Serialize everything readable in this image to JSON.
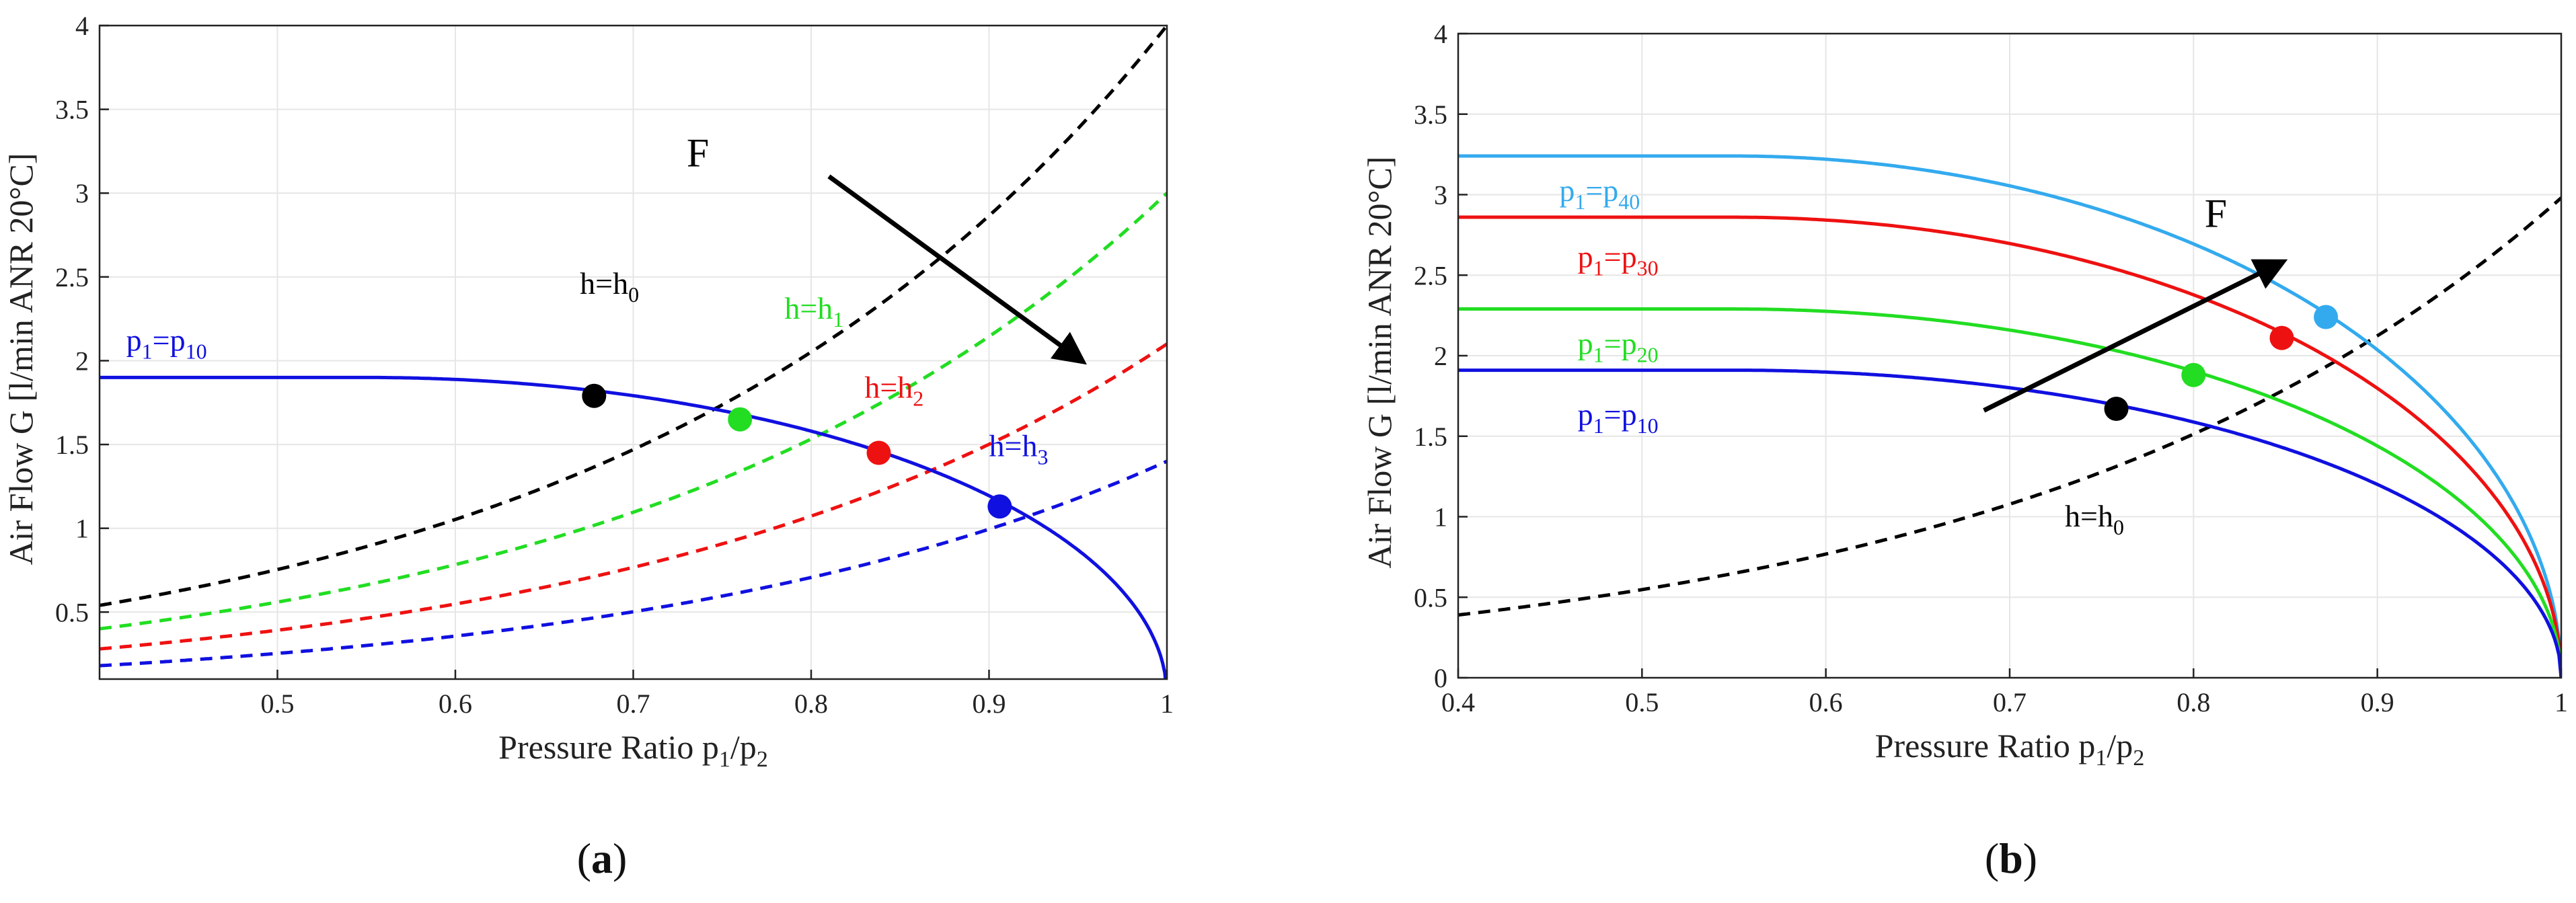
{
  "chart_data": [
    {
      "type": "line",
      "panel": "(a)",
      "caption_open": "(",
      "caption_letter": "a",
      "caption_close": ")",
      "xlabel": "Pressure Ratio p1/p2",
      "xlabel_parts": {
        "main": "Pressure Ratio p",
        "sub1": "1",
        "mid": "/p",
        "sub2": "2"
      },
      "ylabel": "Air  Flow G [l/min ANR 20°C]",
      "xlim": [
        0.4,
        1.0
      ],
      "ylim": [
        0.1,
        4.0
      ],
      "xticks": [
        0.5,
        0.6,
        0.7,
        0.8,
        0.9,
        1.0
      ],
      "xtick_labels": [
        "0.5",
        "0.6",
        "0.7",
        "0.8",
        "0.9",
        "1"
      ],
      "yticks": [
        0.5,
        1.0,
        1.5,
        2.0,
        2.5,
        3.0,
        3.5,
        4.0
      ],
      "ytick_labels": [
        "0.5",
        "1",
        "1.5",
        "2",
        "2.5",
        "3",
        "3.5",
        "4"
      ],
      "grid": true,
      "flow_curves": [
        {
          "name": "p1=p10",
          "label_main": "p",
          "label_sub1": "1",
          "label_eq": "=p",
          "label_sub2": "10",
          "color": "#1010e0",
          "Gmax": 1.9,
          "label_at": [
            0.415,
            2.06
          ]
        }
      ],
      "load_curves": [
        {
          "name": "h=h0",
          "label_main": "h=h",
          "label_sub": "0",
          "color": "#000000",
          "a": 4.0,
          "b": 0.54,
          "label_at": [
            0.67,
            2.4
          ]
        },
        {
          "name": "h=h1",
          "label_main": "h=h",
          "label_sub": "1",
          "color": "#22dd22",
          "a": 3.0,
          "b": 0.4,
          "label_at": [
            0.785,
            2.25
          ]
        },
        {
          "name": "h=h2",
          "label_main": "h=h",
          "label_sub": "2",
          "color": "#ee1111",
          "a": 2.1,
          "b": 0.28,
          "label_at": [
            0.83,
            1.78
          ]
        },
        {
          "name": "h=h3",
          "label_main": "h=h",
          "label_sub": "3",
          "color": "#1010e0",
          "a": 1.4,
          "b": 0.18,
          "label_at": [
            0.9,
            1.43
          ]
        }
      ],
      "operating_points": [
        {
          "x": 0.678,
          "y": 1.79,
          "color": "#000000"
        },
        {
          "x": 0.76,
          "y": 1.65,
          "color": "#22dd22"
        },
        {
          "x": 0.838,
          "y": 1.45,
          "color": "#ee1111"
        },
        {
          "x": 0.906,
          "y": 1.13,
          "color": "#1010e0"
        }
      ],
      "arrow": {
        "label": "F",
        "from": [
          0.81,
          3.1
        ],
        "to": [
          0.952,
          2.0
        ],
        "label_at": [
          0.73,
          3.16
        ]
      }
    },
    {
      "type": "line",
      "panel": "(b)",
      "caption_open": "(",
      "caption_letter": "b",
      "caption_close": ")",
      "xlabel": "Pressure Ratio p1/p2",
      "xlabel_parts": {
        "main": "Pressure Ratio p",
        "sub1": "1",
        "mid": "/p",
        "sub2": "2"
      },
      "ylabel": "Air  Flow G [l/min ANR 20°C]",
      "xlim": [
        0.4,
        1.0
      ],
      "ylim": [
        0.0,
        4.0
      ],
      "xticks": [
        0.4,
        0.5,
        0.6,
        0.7,
        0.8,
        0.9,
        1.0
      ],
      "xtick_labels": [
        "0.4",
        "0.5",
        "0.6",
        "0.7",
        "0.8",
        "0.9",
        "1"
      ],
      "yticks": [
        0.0,
        0.5,
        1.0,
        1.5,
        2.0,
        2.5,
        3.0,
        3.5,
        4.0
      ],
      "ytick_labels": [
        "0",
        "0.5",
        "1",
        "1.5",
        "2",
        "2.5",
        "3",
        "3.5",
        "4"
      ],
      "grid": true,
      "flow_curves": [
        {
          "name": "p1=p40",
          "label_main": "p",
          "label_sub1": "1",
          "label_eq": "=p",
          "label_sub2": "40",
          "color": "#33aaee",
          "Gmax": 3.24,
          "label_at": [
            0.455,
            2.96
          ]
        },
        {
          "name": "p1=p30",
          "label_main": "p",
          "label_sub1": "1",
          "label_eq": "=p",
          "label_sub2": "30",
          "color": "#ee1111",
          "Gmax": 2.86,
          "label_at": [
            0.465,
            2.55
          ]
        },
        {
          "name": "p1=p20",
          "label_main": "p",
          "label_sub1": "1",
          "label_eq": "=p",
          "label_sub2": "20",
          "color": "#22dd22",
          "Gmax": 2.29,
          "label_at": [
            0.465,
            2.01
          ]
        },
        {
          "name": "p1=p10",
          "label_main": "p",
          "label_sub1": "1",
          "label_eq": "=p",
          "label_sub2": "10",
          "color": "#1010e0",
          "Gmax": 1.91,
          "label_at": [
            0.465,
            1.57
          ]
        }
      ],
      "load_curves": [
        {
          "name": "h=h0",
          "label_main": "h=h",
          "label_sub": "0",
          "color": "#000000",
          "a": 2.98,
          "b": 0.39,
          "label_at": [
            0.73,
            0.94
          ]
        }
      ],
      "operating_points": [
        {
          "x": 0.758,
          "y": 1.67,
          "color": "#000000"
        },
        {
          "x": 0.8,
          "y": 1.88,
          "color": "#22dd22"
        },
        {
          "x": 0.848,
          "y": 2.11,
          "color": "#ee1111"
        },
        {
          "x": 0.872,
          "y": 2.24,
          "color": "#33aaee"
        }
      ],
      "arrow": {
        "label": "F",
        "from": [
          0.686,
          1.66
        ],
        "to": [
          0.848,
          2.58
        ],
        "label_at": [
          0.806,
          2.8
        ]
      }
    }
  ]
}
